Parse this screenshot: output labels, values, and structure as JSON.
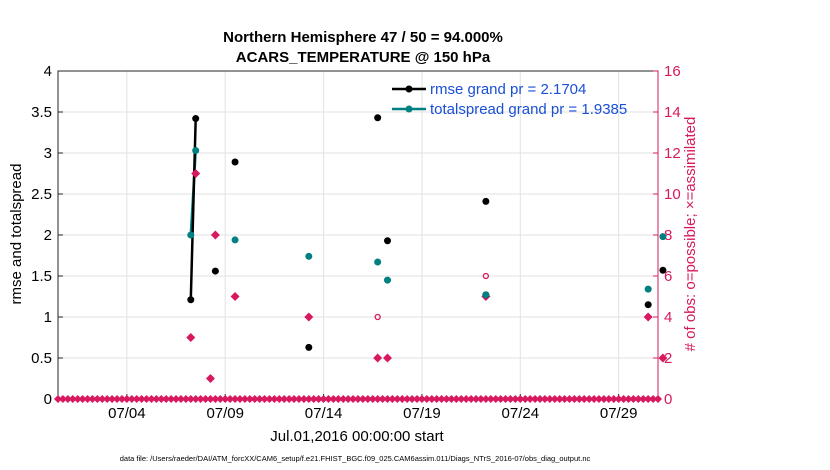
{
  "chart_data": {
    "type": "scatter",
    "title_line1": "Northern Hemisphere 47 / 50 = 94.000%",
    "title_line2": "ACARS_TEMPERATURE @ 150 hPa",
    "xlabel": "Jul.01,2016 00:00:00 start",
    "ylabel_left": "rmse and totalspread",
    "ylabel_right": "# of obs: o=possible; ×=assimilated",
    "footer": "data file: /Users/raeder/DAI/ATM_forcXX/CAM6_setup/f.e21.FHIST_BGC.f09_025.CAM6assim.011/Diags_NTrS_2016-07/obs_diag_output.nc",
    "xlim": [
      0.5,
      31.0
    ],
    "ylim_left": [
      0,
      4
    ],
    "ylim_right": [
      0,
      16
    ],
    "x_ticks": [
      {
        "value": 4,
        "label": "07/04"
      },
      {
        "value": 9,
        "label": "07/09"
      },
      {
        "value": 14,
        "label": "07/14"
      },
      {
        "value": 19,
        "label": "07/19"
      },
      {
        "value": 24,
        "label": "07/24"
      },
      {
        "value": 29,
        "label": "07/29"
      }
    ],
    "y_ticks_left": [
      "0",
      "0.5",
      "1",
      "1.5",
      "2",
      "2.5",
      "3",
      "3.5",
      "4"
    ],
    "y_ticks_right": [
      "0",
      "2",
      "4",
      "6",
      "8",
      "10",
      "12",
      "14",
      "16"
    ],
    "grid": true,
    "legend_position": "top-right",
    "colors": {
      "rmse": "#000000",
      "totalspread": "#008080",
      "obs": "#d8185f",
      "legend_text": "#1a4fd6"
    },
    "series": [
      {
        "name": "rmse grand pr = 2.1704",
        "key": "rmse",
        "points": [
          [
            7.25,
            1.21
          ],
          [
            7.5,
            3.42
          ],
          [
            8.5,
            1.56
          ],
          [
            9.5,
            2.89
          ],
          [
            13.25,
            0.63
          ],
          [
            16.75,
            3.43
          ],
          [
            17.25,
            1.93
          ],
          [
            22.25,
            2.41
          ],
          [
            22.25,
            1.27
          ],
          [
            30.5,
            1.15
          ],
          [
            31.25,
            1.57
          ]
        ],
        "connected": [
          [
            7.25,
            1.21
          ],
          [
            7.5,
            3.42
          ]
        ]
      },
      {
        "name": "totalspread grand pr = 1.9385",
        "key": "totalspread",
        "points": [
          [
            7.25,
            2.0
          ],
          [
            7.5,
            3.03
          ],
          [
            9.5,
            1.94
          ],
          [
            13.25,
            1.74
          ],
          [
            16.75,
            1.67
          ],
          [
            17.25,
            1.45
          ],
          [
            22.25,
            1.27
          ],
          [
            30.5,
            1.34
          ],
          [
            31.25,
            1.98
          ]
        ],
        "connected": [
          [
            7.25,
            2.0
          ],
          [
            7.5,
            3.03
          ]
        ]
      },
      {
        "name": "obs possible",
        "key": "possible",
        "points": [
          [
            16.75,
            4.0
          ],
          [
            22.25,
            6.0
          ]
        ]
      },
      {
        "name": "obs assimilated",
        "key": "assimilated",
        "points": [
          [
            7.25,
            3.0
          ],
          [
            7.5,
            11.0
          ],
          [
            8.25,
            1.0
          ],
          [
            8.5,
            8.0
          ],
          [
            9.5,
            5.0
          ],
          [
            13.25,
            4.0
          ],
          [
            16.75,
            2.0
          ],
          [
            17.25,
            2.0
          ],
          [
            22.25,
            5.0
          ],
          [
            30.5,
            4.0
          ],
          [
            31.25,
            2.0
          ]
        ],
        "zero_x_start": 0.5,
        "zero_x_end": 31.0,
        "zero_x_step": 0.25
      }
    ]
  }
}
